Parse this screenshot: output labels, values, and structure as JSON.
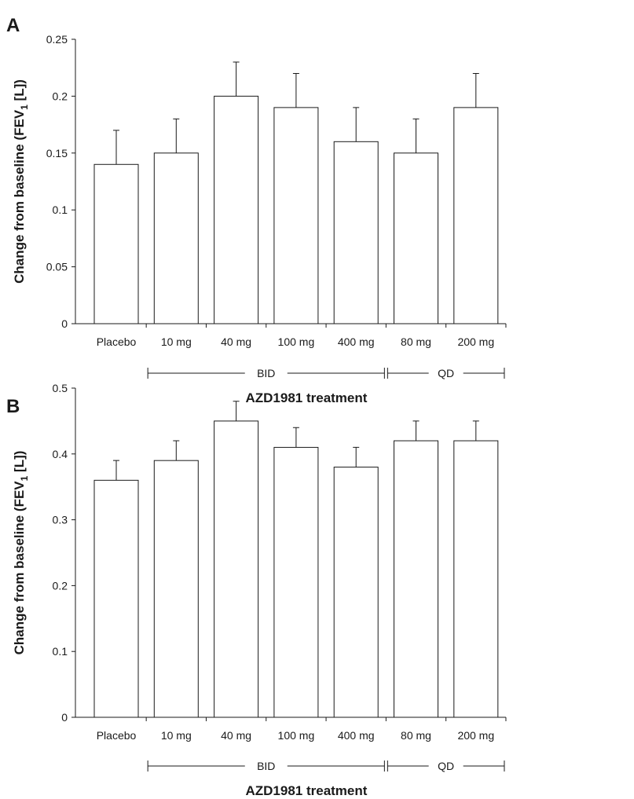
{
  "x_axis_label": "AZD1981 treatment",
  "groups": [
    {
      "label": "BID",
      "start": 1,
      "end": 4
    },
    {
      "label": "QD",
      "start": 5,
      "end": 6
    }
  ],
  "chart_data": [
    {
      "panel": "A",
      "type": "bar",
      "ylabel_main": "Change from baseline (FEV",
      "ylabel_sub": "1",
      "ylabel_tail": " [L])",
      "xlabel": "AZD1981 treatment",
      "categories": [
        "Placebo",
        "10 mg",
        "40 mg",
        "100 mg",
        "400 mg",
        "80 mg",
        "200 mg"
      ],
      "values": [
        0.14,
        0.15,
        0.2,
        0.19,
        0.16,
        0.15,
        0.19
      ],
      "error_upper": [
        0.17,
        0.18,
        0.23,
        0.22,
        0.19,
        0.18,
        0.22
      ],
      "ylim": [
        0,
        0.25
      ],
      "yticks": [
        "0",
        "0.05",
        "0.1",
        "0.15",
        "0.2",
        "0.25"
      ],
      "grid": false
    },
    {
      "panel": "B",
      "type": "bar",
      "ylabel_main": "Change from baseline (FEV",
      "ylabel_sub": "1",
      "ylabel_tail": " [L])",
      "xlabel": "AZD1981 treatment",
      "categories": [
        "Placebo",
        "10 mg",
        "40 mg",
        "100 mg",
        "400 mg",
        "80 mg",
        "200 mg"
      ],
      "values": [
        0.36,
        0.39,
        0.45,
        0.41,
        0.38,
        0.42,
        0.42
      ],
      "error_upper": [
        0.39,
        0.42,
        0.48,
        0.44,
        0.41,
        0.45,
        0.45
      ],
      "ylim": [
        0,
        0.5
      ],
      "yticks": [
        "0",
        "0.1",
        "0.2",
        "0.3",
        "0.4",
        "0.5"
      ],
      "grid": false
    }
  ]
}
